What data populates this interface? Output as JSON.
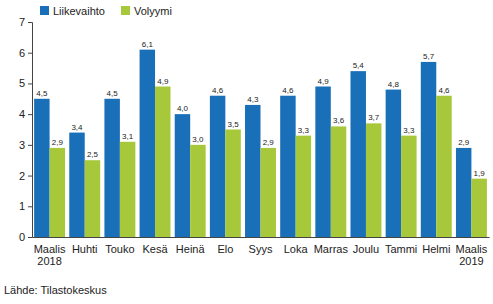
{
  "chart_data": {
    "type": "bar",
    "categories": [
      "Maalis 2018",
      "Huhti",
      "Touko",
      "Kesä",
      "Heinä",
      "Elo",
      "Syys",
      "Loka",
      "Marras",
      "Joulu",
      "Tammi",
      "Helmi",
      "Maalis 2019"
    ],
    "series": [
      {
        "name": "Liikevaihto",
        "color": "#1a6fb9",
        "values": [
          4.5,
          3.4,
          4.5,
          6.1,
          4.0,
          4.6,
          4.3,
          4.6,
          4.9,
          5.4,
          4.8,
          5.7,
          2.9
        ],
        "value_labels": [
          "4,5",
          "3,4",
          "4,5",
          "6,1",
          "4,0",
          "4,6",
          "4,3",
          "4,6",
          "4,9",
          "5,4",
          "4,8",
          "5,7",
          "2,9"
        ]
      },
      {
        "name": "Volyymi",
        "color": "#a8c83c",
        "values": [
          2.9,
          2.5,
          3.1,
          4.9,
          3.0,
          3.5,
          2.9,
          3.3,
          3.6,
          3.7,
          3.3,
          4.6,
          1.9
        ],
        "value_labels": [
          "2,9",
          "2,5",
          "3,1",
          "4,9",
          "3,0",
          "3,5",
          "2,9",
          "3,3",
          "3,6",
          "3,7",
          "3,3",
          "4,6",
          "1,9"
        ]
      }
    ],
    "ylim": [
      0,
      7
    ],
    "yticks": [
      0,
      1,
      2,
      3,
      4,
      5,
      6,
      7
    ],
    "grid": false,
    "data_labels": true,
    "legend": "top-left",
    "annotations": [
      "Lähde: Tilastokeskus"
    ]
  }
}
